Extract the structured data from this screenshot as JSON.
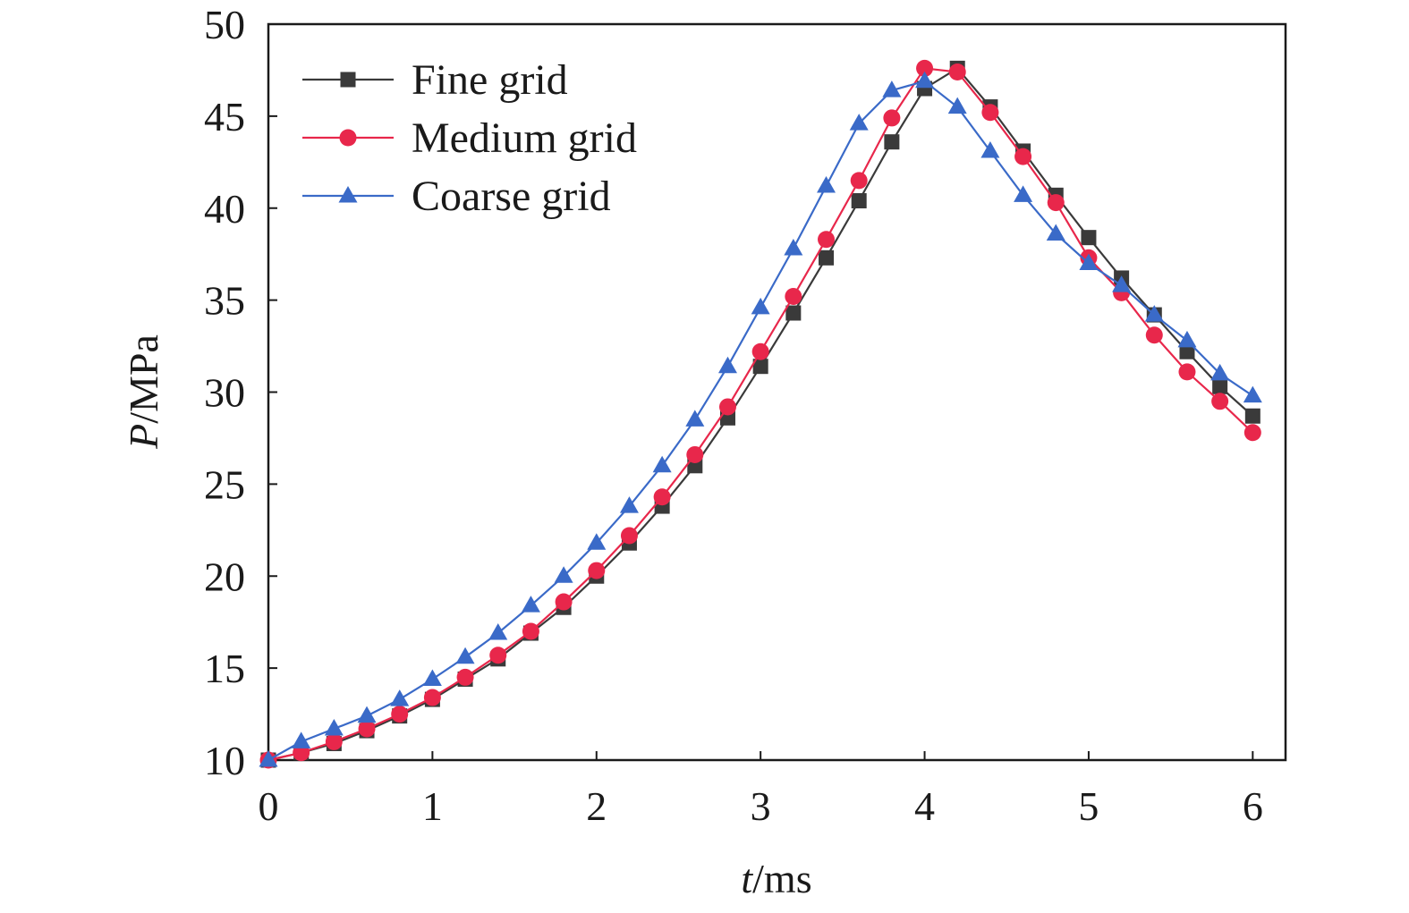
{
  "chart_data": {
    "type": "line",
    "title": "",
    "xlabel_var": "t",
    "xlabel_unit": "/ms",
    "ylabel_var": "P",
    "ylabel_unit": "/MPa",
    "xlim": [
      0,
      6.2
    ],
    "ylim": [
      10,
      50
    ],
    "xticks": [
      0,
      1,
      2,
      3,
      4,
      5,
      6
    ],
    "yticks": [
      10,
      15,
      20,
      25,
      30,
      35,
      40,
      45,
      50
    ],
    "grid": false,
    "legend_position": "top-left",
    "x": [
      0,
      0.2,
      0.4,
      0.6,
      0.8,
      1.0,
      1.2,
      1.4,
      1.6,
      1.8,
      2.0,
      2.2,
      2.4,
      2.6,
      2.8,
      3.0,
      3.2,
      3.4,
      3.6,
      3.8,
      4.0,
      4.2,
      4.4,
      4.6,
      4.8,
      5.0,
      5.2,
      5.4,
      5.6,
      5.8,
      6.0
    ],
    "series": [
      {
        "name": "Fine grid",
        "marker": "square",
        "color": "#3a3a3a",
        "values": [
          10.0,
          10.4,
          10.9,
          11.6,
          12.4,
          13.3,
          14.4,
          15.5,
          16.9,
          18.3,
          20.0,
          21.8,
          23.8,
          26.0,
          28.6,
          31.4,
          34.3,
          37.3,
          40.4,
          43.6,
          46.5,
          47.6,
          45.5,
          43.1,
          40.7,
          38.4,
          36.2,
          34.2,
          32.2,
          30.3,
          28.7
        ]
      },
      {
        "name": "Medium grid",
        "marker": "circle",
        "color": "#e8274b",
        "values": [
          10.0,
          10.4,
          11.0,
          11.7,
          12.5,
          13.4,
          14.5,
          15.7,
          17.0,
          18.6,
          20.3,
          22.2,
          24.3,
          26.6,
          29.2,
          32.2,
          35.2,
          38.3,
          41.5,
          44.9,
          47.6,
          47.4,
          45.2,
          42.8,
          40.3,
          37.3,
          35.4,
          33.1,
          31.1,
          29.5,
          27.8
        ]
      },
      {
        "name": "Coarse grid",
        "marker": "triangle",
        "color": "#3a6ac8",
        "values": [
          10.0,
          11.0,
          11.7,
          12.4,
          13.3,
          14.4,
          15.6,
          16.9,
          18.4,
          20.0,
          21.8,
          23.8,
          26.0,
          28.5,
          31.4,
          34.6,
          37.8,
          41.2,
          44.6,
          46.4,
          46.9,
          45.5,
          43.1,
          40.7,
          38.6,
          37.0,
          35.8,
          34.2,
          32.8,
          31.0,
          29.8
        ]
      }
    ]
  }
}
